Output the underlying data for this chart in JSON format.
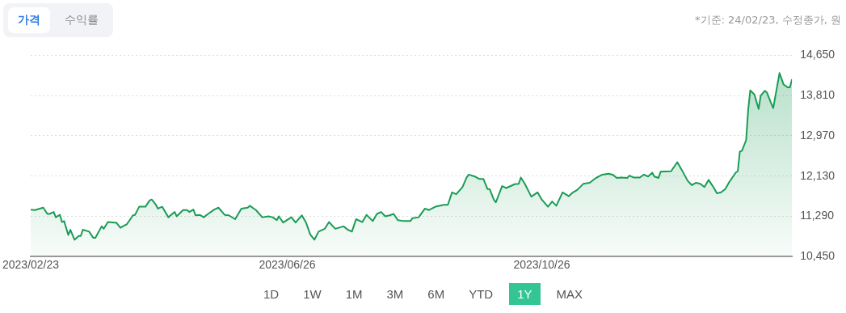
{
  "chart_data": {
    "type": "area",
    "subtitle": "*기준: 24/02/23, 수정종가, 원",
    "annotations": [
      "가격",
      "수익률",
      "1D",
      "1W",
      "1M",
      "3M",
      "6M",
      "YTD",
      "1Y",
      "MAX"
    ],
    "xlim": [
      "2023-02-23",
      "2024-02-23"
    ],
    "xticks": [
      {
        "value": "2023-02-23",
        "label": "2023/02/23"
      },
      {
        "value": "2023-06-26",
        "label": "2023/06/26"
      },
      {
        "value": "2023-10-26",
        "label": "2023/10/26"
      }
    ],
    "ylim": [
      10450,
      14650
    ],
    "yticks": [
      {
        "value": 10450,
        "label": "10,450"
      },
      {
        "value": 11290,
        "label": "11,290"
      },
      {
        "value": 12130,
        "label": "12,130"
      },
      {
        "value": 12970,
        "label": "12,970"
      },
      {
        "value": 13810,
        "label": "13,810"
      },
      {
        "value": 14650,
        "label": "14,650"
      }
    ],
    "grid": "y",
    "legend": false,
    "marker": "none",
    "line_style": "solid",
    "x": [
      "2023-02-23",
      "2023-02-25",
      "2023-03-01",
      "2023-03-03",
      "2023-03-04",
      "2023-03-06",
      "2023-03-07",
      "2023-03-09",
      "2023-03-10",
      "2023-03-11",
      "2023-03-13",
      "2023-03-14",
      "2023-03-16",
      "2023-03-18",
      "2023-03-19",
      "2023-03-20",
      "2023-03-23",
      "2023-03-25",
      "2023-03-26",
      "2023-03-29",
      "2023-03-30",
      "2023-04-01",
      "2023-04-04",
      "2023-04-05",
      "2023-04-07",
      "2023-04-09",
      "2023-04-10",
      "2023-04-13",
      "2023-04-14",
      "2023-04-16",
      "2023-04-19",
      "2023-04-21",
      "2023-04-22",
      "2023-04-24",
      "2023-04-25",
      "2023-04-27",
      "2023-04-30",
      "2023-05-03",
      "2023-05-04",
      "2023-05-07",
      "2023-05-09",
      "2023-05-10",
      "2023-05-12",
      "2023-05-13",
      "2023-05-15",
      "2023-05-17",
      "2023-05-19",
      "2023-05-22",
      "2023-05-24",
      "2023-05-27",
      "2023-05-29",
      "2023-06-01",
      "2023-06-04",
      "2023-06-07",
      "2023-06-08",
      "2023-06-11",
      "2023-06-14",
      "2023-06-17",
      "2023-06-19",
      "2023-06-21",
      "2023-06-22",
      "2023-06-24",
      "2023-06-28",
      "2023-06-30",
      "2023-07-03",
      "2023-07-05",
      "2023-07-07",
      "2023-07-09",
      "2023-07-11",
      "2023-07-14",
      "2023-07-16",
      "2023-07-19",
      "2023-07-23",
      "2023-07-25",
      "2023-07-27",
      "2023-07-29",
      "2023-08-01",
      "2023-08-03",
      "2023-08-06",
      "2023-08-08",
      "2023-08-10",
      "2023-08-12",
      "2023-08-14",
      "2023-08-16",
      "2023-08-18",
      "2023-08-21",
      "2023-08-24",
      "2023-08-25",
      "2023-08-28",
      "2023-08-31",
      "2023-09-02",
      "2023-09-05",
      "2023-09-09",
      "2023-09-11",
      "2023-09-13",
      "2023-09-15",
      "2023-09-18",
      "2023-09-20",
      "2023-09-21",
      "2023-09-24",
      "2023-09-26",
      "2023-09-28",
      "2023-09-30",
      "2023-10-01",
      "2023-10-03",
      "2023-10-04",
      "2023-10-07",
      "2023-10-09",
      "2023-10-13",
      "2023-10-15",
      "2023-10-16",
      "2023-10-18",
      "2023-10-21",
      "2023-10-24",
      "2023-10-26",
      "2023-10-29",
      "2023-10-31",
      "2023-11-02",
      "2023-11-05",
      "2023-11-08",
      "2023-11-10",
      "2023-11-12",
      "2023-11-15",
      "2023-11-18",
      "2023-11-21",
      "2023-11-24",
      "2023-11-27",
      "2023-11-29",
      "2023-12-01",
      "2023-12-03",
      "2023-12-06",
      "2023-12-07",
      "2023-12-09",
      "2023-12-12",
      "2023-12-14",
      "2023-12-16",
      "2023-12-18",
      "2023-12-19",
      "2023-12-21",
      "2023-12-22",
      "2023-12-27",
      "2023-12-30",
      "2024-01-01",
      "2024-01-04",
      "2024-01-06",
      "2024-01-08",
      "2024-01-10",
      "2024-01-12",
      "2024-01-14",
      "2024-01-16",
      "2024-01-18",
      "2024-01-20",
      "2024-01-22",
      "2024-01-24",
      "2024-01-27",
      "2024-01-28",
      "2024-01-29",
      "2024-01-30",
      "2024-02-01",
      "2024-02-02",
      "2024-02-03",
      "2024-02-05",
      "2024-02-07",
      "2024-02-08",
      "2024-02-10",
      "2024-02-11",
      "2024-02-13",
      "2024-02-14",
      "2024-02-17",
      "2024-02-19",
      "2024-02-21",
      "2024-02-22",
      "2024-02-23"
    ],
    "series": [
      {
        "color": "#1a9c55",
        "values": [
          11430,
          11420,
          11470,
          11340,
          11340,
          11380,
          11270,
          11320,
          11170,
          11190,
          10900,
          11010,
          10800,
          10880,
          10880,
          11010,
          10970,
          10840,
          10840,
          11080,
          11030,
          11170,
          11160,
          11160,
          11050,
          11100,
          11120,
          11310,
          11320,
          11490,
          11490,
          11620,
          11640,
          11530,
          11450,
          11490,
          11270,
          11380,
          11290,
          11420,
          11420,
          11380,
          11430,
          11310,
          11320,
          11270,
          11340,
          11430,
          11470,
          11320,
          11310,
          11230,
          11450,
          11470,
          11510,
          11420,
          11270,
          11290,
          11270,
          11210,
          11290,
          11160,
          11270,
          11160,
          11310,
          11160,
          10910,
          10800,
          10970,
          11030,
          11170,
          11030,
          11080,
          11010,
          10970,
          11230,
          11170,
          11320,
          11190,
          11340,
          11380,
          11290,
          11310,
          11340,
          11210,
          11190,
          11190,
          11250,
          11270,
          11450,
          11420,
          11490,
          11530,
          11530,
          11790,
          11750,
          11900,
          12100,
          12160,
          12120,
          12070,
          12070,
          11860,
          11860,
          11640,
          11580,
          11920,
          11880,
          11960,
          11970,
          12100,
          11960,
          11700,
          11790,
          11640,
          11490,
          11600,
          11510,
          11790,
          11710,
          11790,
          11840,
          11970,
          11990,
          12090,
          12160,
          12180,
          12160,
          12090,
          12100,
          12090,
          12140,
          12100,
          12100,
          12160,
          12120,
          12200,
          12120,
          12090,
          12220,
          12230,
          12420,
          12270,
          12030,
          11940,
          11990,
          11970,
          11900,
          12050,
          11920,
          11770,
          11790,
          11860,
          12010,
          12200,
          12230,
          12640,
          12660,
          12880,
          13520,
          13920,
          13830,
          13530,
          13810,
          13910,
          13870,
          13650,
          13550,
          14280,
          14040,
          13980,
          13980,
          14150
        ]
      }
    ]
  }
}
